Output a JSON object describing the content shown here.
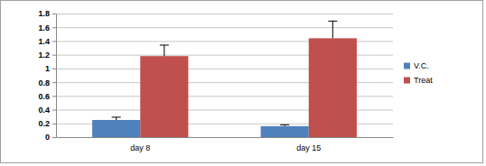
{
  "chart_data": {
    "type": "bar",
    "categories": [
      "day 8",
      "day 15"
    ],
    "series": [
      {
        "name": "V.C.",
        "color": "#4f81bd",
        "values": [
          0.25,
          0.16
        ],
        "errors": [
          0.04,
          0.02
        ]
      },
      {
        "name": "Treat",
        "color": "#c0504d",
        "values": [
          1.18,
          1.44
        ],
        "errors": [
          0.16,
          0.25
        ]
      }
    ],
    "ylim": [
      0,
      1.8
    ],
    "yticks": [
      0,
      0.2,
      0.4,
      0.6,
      0.8,
      1,
      1.2,
      1.4,
      1.6,
      1.8
    ],
    "grid": true,
    "legend": "right"
  }
}
